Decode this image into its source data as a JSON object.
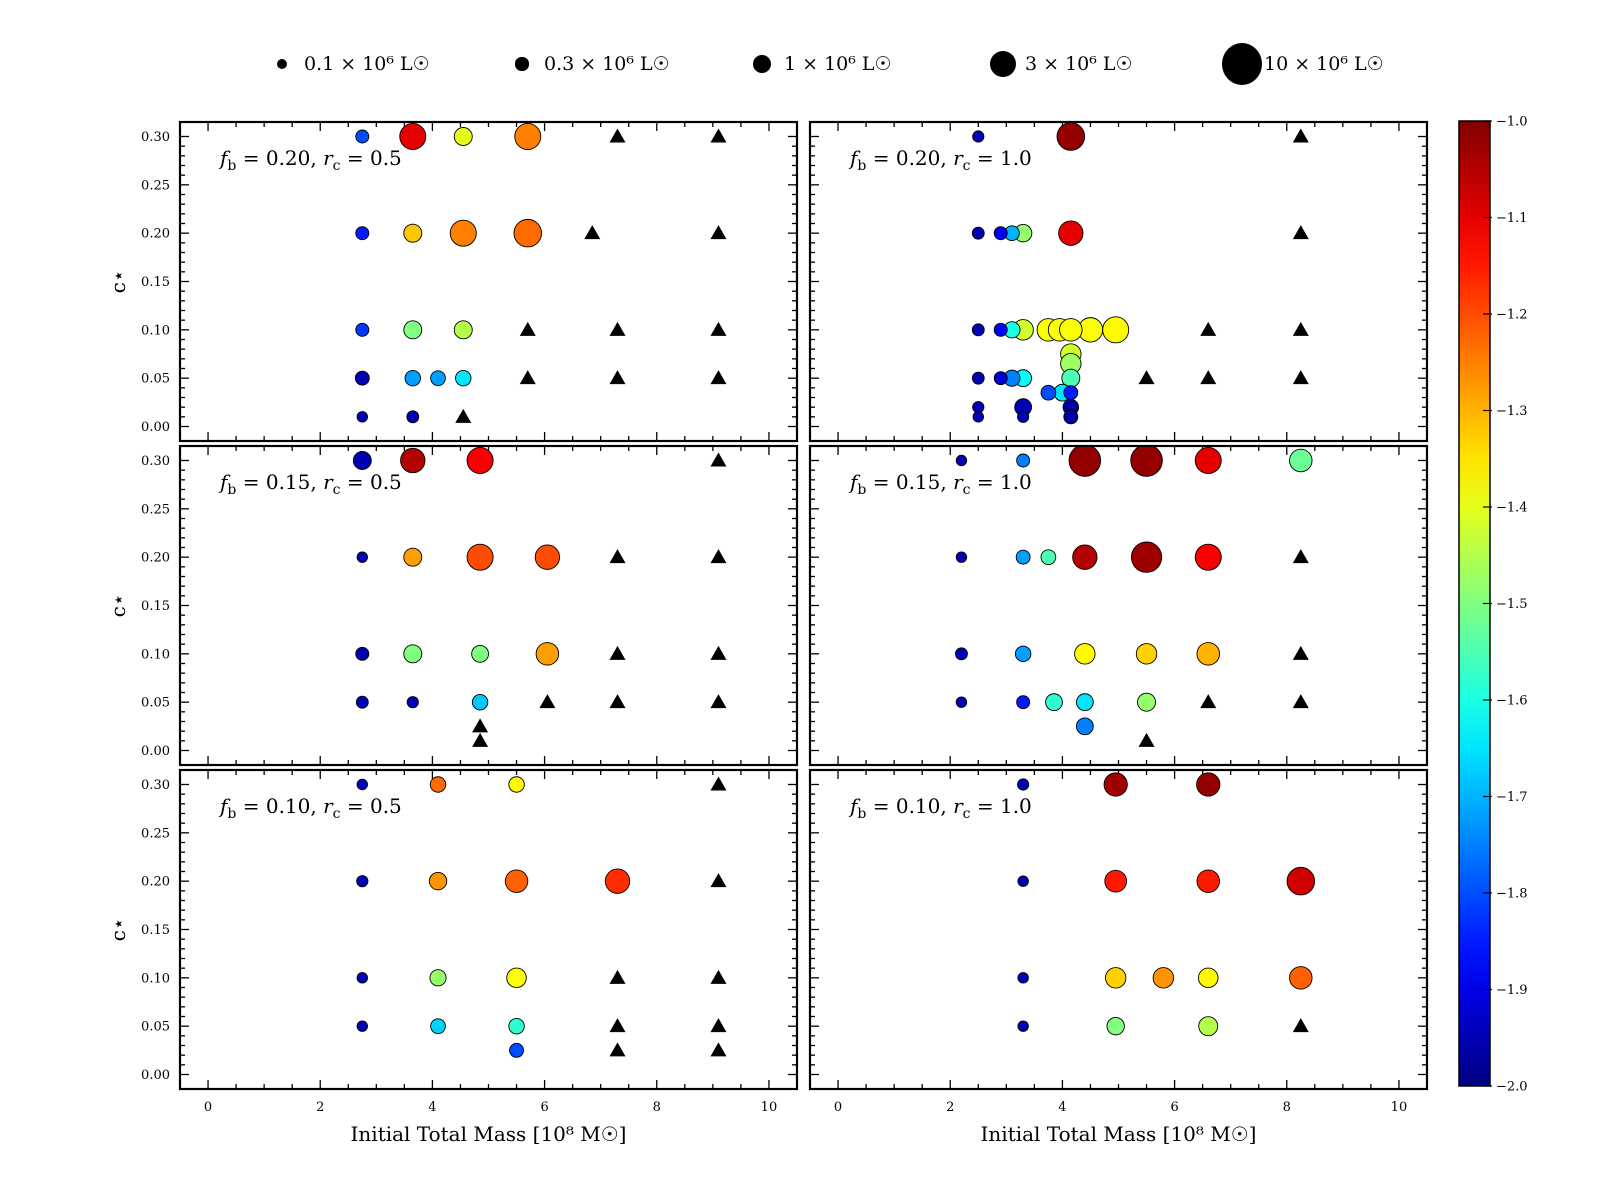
{
  "legend": [
    {
      "label": "0.1 × 10⁶ L☉",
      "size_value": 0.1
    },
    {
      "label": "0.3 × 10⁶ L☉",
      "size_value": 0.3
    },
    {
      "label": "1 × 10⁶ L☉",
      "size_value": 1
    },
    {
      "label": "3 × 10⁶ L☉",
      "size_value": 3
    },
    {
      "label": "10 × 10⁶ L☉",
      "size_value": 10
    }
  ],
  "colorbar": {
    "colormap": "jet",
    "min": -2.0,
    "max": -1.0,
    "ticks": [
      "−1.0",
      "−1.1",
      "−1.2",
      "−1.3",
      "−1.4",
      "−1.5",
      "−1.6",
      "−1.7",
      "−1.8",
      "−1.9",
      "−2.0"
    ],
    "tick_values": [
      -1.0,
      -1.1,
      -1.2,
      -1.3,
      -1.4,
      -1.5,
      -1.6,
      -1.7,
      -1.8,
      -1.9,
      -2.0
    ]
  },
  "axes": {
    "xlabel": "Initial Total Mass [10⁸ M☉]",
    "ylabel": "c⋆",
    "xlim": [
      -0.5,
      10.5
    ],
    "ylim": [
      -0.015,
      0.315
    ],
    "xticks": [
      0,
      2,
      4,
      6,
      8,
      10
    ],
    "xtick_labels": [
      "0",
      "2",
      "4",
      "6",
      "8",
      "10"
    ],
    "yticks": [
      0.0,
      0.05,
      0.1,
      0.15,
      0.2,
      0.25,
      0.3
    ],
    "ytick_labels": [
      "0.00",
      "0.05",
      "0.10",
      "0.15",
      "0.20",
      "0.25",
      "0.30"
    ]
  },
  "chart_data": [
    {
      "type": "scatter",
      "id": "fb020-rc05",
      "label": "fb = 0.20, rc = 0.5",
      "points": [
        {
          "x": 2.75,
          "y": 0.3,
          "size": 0.3,
          "color": -1.8
        },
        {
          "x": 3.65,
          "y": 0.3,
          "size": 3,
          "color": -1.1
        },
        {
          "x": 4.55,
          "y": 0.3,
          "size": 1,
          "color": -1.4
        },
        {
          "x": 5.7,
          "y": 0.3,
          "size": 3,
          "color": -1.25
        },
        {
          "x": 2.75,
          "y": 0.2,
          "size": 0.3,
          "color": -1.85
        },
        {
          "x": 3.65,
          "y": 0.2,
          "size": 1,
          "color": -1.32
        },
        {
          "x": 4.55,
          "y": 0.2,
          "size": 3,
          "color": -1.25
        },
        {
          "x": 5.7,
          "y": 0.2,
          "size": 3.5,
          "color": -1.23
        },
        {
          "x": 2.75,
          "y": 0.1,
          "size": 0.3,
          "color": -1.82
        },
        {
          "x": 3.65,
          "y": 0.1,
          "size": 1,
          "color": -1.5
        },
        {
          "x": 4.55,
          "y": 0.1,
          "size": 1,
          "color": -1.45
        },
        {
          "x": 2.75,
          "y": 0.05,
          "size": 0.4,
          "color": -1.95
        },
        {
          "x": 3.65,
          "y": 0.05,
          "size": 0.6,
          "color": -1.72
        },
        {
          "x": 4.1,
          "y": 0.05,
          "size": 0.5,
          "color": -1.72
        },
        {
          "x": 4.55,
          "y": 0.05,
          "size": 0.6,
          "color": -1.65
        },
        {
          "x": 2.75,
          "y": 0.01,
          "size": 0.1,
          "color": -1.95
        },
        {
          "x": 3.65,
          "y": 0.01,
          "size": 0.2,
          "color": -1.95
        }
      ],
      "triangles": [
        {
          "x": 7.3,
          "y": 0.3
        },
        {
          "x": 9.1,
          "y": 0.3
        },
        {
          "x": 6.85,
          "y": 0.2
        },
        {
          "x": 9.1,
          "y": 0.2
        },
        {
          "x": 5.7,
          "y": 0.1
        },
        {
          "x": 7.3,
          "y": 0.1
        },
        {
          "x": 9.1,
          "y": 0.1
        },
        {
          "x": 5.7,
          "y": 0.05
        },
        {
          "x": 7.3,
          "y": 0.05
        },
        {
          "x": 9.1,
          "y": 0.05
        },
        {
          "x": 4.55,
          "y": 0.01
        }
      ]
    },
    {
      "type": "scatter",
      "id": "fb020-rc10",
      "label": "fb = 0.20, rc = 1.0",
      "points": [
        {
          "x": 2.5,
          "y": 0.3,
          "size": 0.15,
          "color": -1.95
        },
        {
          "x": 4.15,
          "y": 0.3,
          "size": 3.5,
          "color": -1.02
        },
        {
          "x": 2.5,
          "y": 0.2,
          "size": 0.2,
          "color": -1.95
        },
        {
          "x": 2.9,
          "y": 0.2,
          "size": 0.3,
          "color": -1.88
        },
        {
          "x": 3.1,
          "y": 0.2,
          "size": 0.5,
          "color": -1.7
        },
        {
          "x": 3.3,
          "y": 0.2,
          "size": 0.9,
          "color": -1.48
        },
        {
          "x": 4.15,
          "y": 0.2,
          "size": 2.5,
          "color": -1.1
        },
        {
          "x": 2.5,
          "y": 0.1,
          "size": 0.2,
          "color": -1.95
        },
        {
          "x": 2.9,
          "y": 0.1,
          "size": 0.3,
          "color": -1.88
        },
        {
          "x": 3.1,
          "y": 0.1,
          "size": 0.7,
          "color": -1.6
        },
        {
          "x": 3.3,
          "y": 0.1,
          "size": 1.5,
          "color": -1.42
        },
        {
          "x": 3.75,
          "y": 0.1,
          "size": 2,
          "color": -1.38
        },
        {
          "x": 3.95,
          "y": 0.1,
          "size": 2,
          "color": -1.38
        },
        {
          "x": 4.15,
          "y": 0.1,
          "size": 2,
          "color": -1.38
        },
        {
          "x": 4.5,
          "y": 0.1,
          "size": 2.5,
          "color": -1.38
        },
        {
          "x": 4.95,
          "y": 0.1,
          "size": 3,
          "color": -1.37
        },
        {
          "x": 2.5,
          "y": 0.05,
          "size": 0.2,
          "color": -1.95
        },
        {
          "x": 2.9,
          "y": 0.05,
          "size": 0.3,
          "color": -1.92
        },
        {
          "x": 3.1,
          "y": 0.05,
          "size": 0.7,
          "color": -1.75
        },
        {
          "x": 3.3,
          "y": 0.05,
          "size": 0.8,
          "color": -1.62
        },
        {
          "x": 4.15,
          "y": 0.075,
          "size": 1.5,
          "color": -1.42
        },
        {
          "x": 4.15,
          "y": 0.065,
          "size": 1.5,
          "color": -1.47
        },
        {
          "x": 4.15,
          "y": 0.05,
          "size": 1,
          "color": -1.55
        },
        {
          "x": 4.0,
          "y": 0.035,
          "size": 0.8,
          "color": -1.65
        },
        {
          "x": 3.75,
          "y": 0.035,
          "size": 0.5,
          "color": -1.8
        },
        {
          "x": 4.15,
          "y": 0.035,
          "size": 0.4,
          "color": -1.85
        },
        {
          "x": 2.5,
          "y": 0.02,
          "size": 0.15,
          "color": -1.95
        },
        {
          "x": 2.5,
          "y": 0.01,
          "size": 0.1,
          "color": -1.95
        },
        {
          "x": 3.3,
          "y": 0.02,
          "size": 0.8,
          "color": -1.95
        },
        {
          "x": 3.3,
          "y": 0.01,
          "size": 0.15,
          "color": -1.95
        },
        {
          "x": 4.15,
          "y": 0.02,
          "size": 0.6,
          "color": -1.97
        },
        {
          "x": 4.15,
          "y": 0.01,
          "size": 0.4,
          "color": -1.97
        }
      ],
      "triangles": [
        {
          "x": 8.25,
          "y": 0.3
        },
        {
          "x": 8.25,
          "y": 0.2
        },
        {
          "x": 6.6,
          "y": 0.1
        },
        {
          "x": 8.25,
          "y": 0.1
        },
        {
          "x": 5.5,
          "y": 0.05
        },
        {
          "x": 6.6,
          "y": 0.05
        },
        {
          "x": 8.25,
          "y": 0.05
        }
      ]
    },
    {
      "type": "scatter",
      "id": "fb015-rc05",
      "label": "fb = 0.15, rc = 0.5",
      "points": [
        {
          "x": 2.75,
          "y": 0.3,
          "size": 1,
          "color": -1.95
        },
        {
          "x": 3.65,
          "y": 0.3,
          "size": 2.5,
          "color": -1.05
        },
        {
          "x": 4.85,
          "y": 0.3,
          "size": 3,
          "color": -1.12
        },
        {
          "x": 2.75,
          "y": 0.2,
          "size": 0.1,
          "color": -1.95
        },
        {
          "x": 3.65,
          "y": 0.2,
          "size": 1,
          "color": -1.28
        },
        {
          "x": 4.85,
          "y": 0.2,
          "size": 3,
          "color": -1.2
        },
        {
          "x": 6.05,
          "y": 0.2,
          "size": 2.5,
          "color": -1.2
        },
        {
          "x": 2.75,
          "y": 0.1,
          "size": 0.3,
          "color": -1.95
        },
        {
          "x": 3.65,
          "y": 0.1,
          "size": 1,
          "color": -1.5
        },
        {
          "x": 4.85,
          "y": 0.1,
          "size": 0.8,
          "color": -1.5
        },
        {
          "x": 6.05,
          "y": 0.1,
          "size": 2,
          "color": -1.28
        },
        {
          "x": 2.75,
          "y": 0.05,
          "size": 0.2,
          "color": -1.95
        },
        {
          "x": 3.65,
          "y": 0.05,
          "size": 0.15,
          "color": -1.95
        },
        {
          "x": 4.85,
          "y": 0.05,
          "size": 0.6,
          "color": -1.68
        }
      ],
      "triangles": [
        {
          "x": 9.1,
          "y": 0.3
        },
        {
          "x": 7.3,
          "y": 0.2
        },
        {
          "x": 9.1,
          "y": 0.2
        },
        {
          "x": 7.3,
          "y": 0.1
        },
        {
          "x": 9.1,
          "y": 0.1
        },
        {
          "x": 6.05,
          "y": 0.05
        },
        {
          "x": 7.3,
          "y": 0.05
        },
        {
          "x": 9.1,
          "y": 0.05
        },
        {
          "x": 4.85,
          "y": 0.025
        },
        {
          "x": 4.85,
          "y": 0.01
        }
      ]
    },
    {
      "type": "scatter",
      "id": "fb015-rc10",
      "label": "fb = 0.15, rc = 1.0",
      "points": [
        {
          "x": 2.2,
          "y": 0.3,
          "size": 0.1,
          "color": -1.95
        },
        {
          "x": 3.3,
          "y": 0.3,
          "size": 0.3,
          "color": -1.75
        },
        {
          "x": 4.4,
          "y": 0.3,
          "size": 5,
          "color": -1.02
        },
        {
          "x": 5.5,
          "y": 0.3,
          "size": 5,
          "color": -1.02
        },
        {
          "x": 6.6,
          "y": 0.3,
          "size": 3,
          "color": -1.1
        },
        {
          "x": 8.25,
          "y": 0.3,
          "size": 2,
          "color": -1.52
        },
        {
          "x": 2.2,
          "y": 0.2,
          "size": 0.1,
          "color": -1.95
        },
        {
          "x": 3.3,
          "y": 0.2,
          "size": 0.4,
          "color": -1.72
        },
        {
          "x": 3.75,
          "y": 0.2,
          "size": 0.5,
          "color": -1.55
        },
        {
          "x": 4.4,
          "y": 0.2,
          "size": 2.5,
          "color": -1.05
        },
        {
          "x": 5.5,
          "y": 0.2,
          "size": 4.5,
          "color": -1.03
        },
        {
          "x": 6.6,
          "y": 0.2,
          "size": 3,
          "color": -1.12
        },
        {
          "x": 2.2,
          "y": 0.1,
          "size": 0.2,
          "color": -1.95
        },
        {
          "x": 3.3,
          "y": 0.1,
          "size": 0.6,
          "color": -1.72
        },
        {
          "x": 4.4,
          "y": 0.1,
          "size": 1.5,
          "color": -1.37
        },
        {
          "x": 5.5,
          "y": 0.1,
          "size": 1.5,
          "color": -1.33
        },
        {
          "x": 6.6,
          "y": 0.1,
          "size": 2,
          "color": -1.3
        },
        {
          "x": 2.2,
          "y": 0.05,
          "size": 0.1,
          "color": -1.95
        },
        {
          "x": 3.3,
          "y": 0.05,
          "size": 0.3,
          "color": -1.85
        },
        {
          "x": 3.85,
          "y": 0.05,
          "size": 0.8,
          "color": -1.58
        },
        {
          "x": 4.4,
          "y": 0.05,
          "size": 0.8,
          "color": -1.65
        },
        {
          "x": 5.5,
          "y": 0.05,
          "size": 1,
          "color": -1.48
        },
        {
          "x": 4.4,
          "y": 0.025,
          "size": 0.8,
          "color": -1.75
        }
      ],
      "triangles": [
        {
          "x": 8.25,
          "y": 0.2
        },
        {
          "x": 8.25,
          "y": 0.1
        },
        {
          "x": 6.6,
          "y": 0.05
        },
        {
          "x": 8.25,
          "y": 0.05
        },
        {
          "x": 5.5,
          "y": 0.01
        }
      ]
    },
    {
      "type": "scatter",
      "id": "fb010-rc05",
      "label": "fb = 0.10, rc = 0.5",
      "points": [
        {
          "x": 2.75,
          "y": 0.3,
          "size": 0.1,
          "color": -1.95
        },
        {
          "x": 4.1,
          "y": 0.3,
          "size": 0.6,
          "color": -1.23
        },
        {
          "x": 5.5,
          "y": 0.3,
          "size": 0.6,
          "color": -1.37
        },
        {
          "x": 2.75,
          "y": 0.2,
          "size": 0.15,
          "color": -1.95
        },
        {
          "x": 4.1,
          "y": 0.2,
          "size": 0.9,
          "color": -1.27
        },
        {
          "x": 5.5,
          "y": 0.2,
          "size": 2,
          "color": -1.22
        },
        {
          "x": 7.3,
          "y": 0.2,
          "size": 2.5,
          "color": -1.17
        },
        {
          "x": 2.75,
          "y": 0.1,
          "size": 0.1,
          "color": -1.95
        },
        {
          "x": 4.1,
          "y": 0.1,
          "size": 0.7,
          "color": -1.48
        },
        {
          "x": 5.5,
          "y": 0.1,
          "size": 1.3,
          "color": -1.38
        },
        {
          "x": 2.75,
          "y": 0.05,
          "size": 0.1,
          "color": -1.95
        },
        {
          "x": 4.1,
          "y": 0.05,
          "size": 0.5,
          "color": -1.67
        },
        {
          "x": 5.5,
          "y": 0.05,
          "size": 0.6,
          "color": -1.58
        },
        {
          "x": 5.5,
          "y": 0.025,
          "size": 0.4,
          "color": -1.8
        }
      ],
      "triangles": [
        {
          "x": 9.1,
          "y": 0.3
        },
        {
          "x": 9.1,
          "y": 0.2
        },
        {
          "x": 7.3,
          "y": 0.1
        },
        {
          "x": 9.1,
          "y": 0.1
        },
        {
          "x": 7.3,
          "y": 0.05
        },
        {
          "x": 9.1,
          "y": 0.05
        },
        {
          "x": 7.3,
          "y": 0.025
        },
        {
          "x": 9.1,
          "y": 0.025
        }
      ]
    },
    {
      "type": "scatter",
      "id": "fb010-rc10",
      "label": "fb = 0.10, rc = 1.0",
      "points": [
        {
          "x": 3.3,
          "y": 0.3,
          "size": 0.15,
          "color": -1.95
        },
        {
          "x": 4.95,
          "y": 0.3,
          "size": 2.2,
          "color": -1.03
        },
        {
          "x": 6.6,
          "y": 0.3,
          "size": 2.2,
          "color": -1.02
        },
        {
          "x": 3.3,
          "y": 0.2,
          "size": 0.1,
          "color": -1.95
        },
        {
          "x": 4.95,
          "y": 0.2,
          "size": 1.8,
          "color": -1.15
        },
        {
          "x": 6.6,
          "y": 0.2,
          "size": 2,
          "color": -1.15
        },
        {
          "x": 8.25,
          "y": 0.2,
          "size": 3.5,
          "color": -1.08
        },
        {
          "x": 3.3,
          "y": 0.1,
          "size": 0.1,
          "color": -1.95
        },
        {
          "x": 4.95,
          "y": 0.1,
          "size": 1.5,
          "color": -1.33
        },
        {
          "x": 5.8,
          "y": 0.1,
          "size": 1.5,
          "color": -1.27
        },
        {
          "x": 6.6,
          "y": 0.1,
          "size": 1.3,
          "color": -1.37
        },
        {
          "x": 8.25,
          "y": 0.1,
          "size": 2,
          "color": -1.22
        },
        {
          "x": 3.3,
          "y": 0.05,
          "size": 0.1,
          "color": -1.95
        },
        {
          "x": 4.95,
          "y": 0.05,
          "size": 0.9,
          "color": -1.5
        },
        {
          "x": 6.6,
          "y": 0.05,
          "size": 1.2,
          "color": -1.45
        }
      ],
      "triangles": [
        {
          "x": 8.25,
          "y": 0.05
        }
      ]
    }
  ]
}
